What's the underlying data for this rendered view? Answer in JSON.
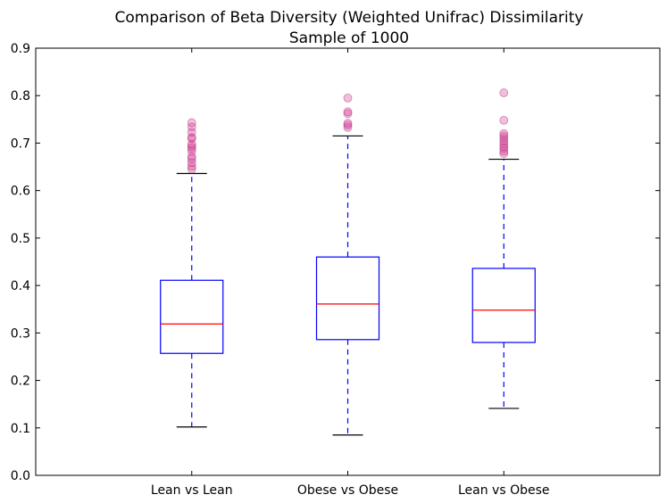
{
  "chart_data": {
    "type": "box",
    "title": "Comparison of Beta Diversity (Weighted Unifrac) Dissimilarity",
    "subtitle": "Sample of 1000",
    "xlabel": "",
    "ylabel": "",
    "ylim": [
      0,
      0.9
    ],
    "yticks": [
      0.0,
      0.1,
      0.2,
      0.3,
      0.4,
      0.5,
      0.6,
      0.7,
      0.8,
      0.9
    ],
    "ytick_labels": [
      "0.0",
      "0.1",
      "0.2",
      "0.3",
      "0.4",
      "0.5",
      "0.6",
      "0.7",
      "0.8",
      "0.9"
    ],
    "grid": false,
    "categories": [
      "Lean vs Lean",
      "Obese vs Obese",
      "Lean vs Obese"
    ],
    "boxes": [
      {
        "whisker_low": 0.102,
        "q1": 0.257,
        "median": 0.319,
        "q3": 0.411,
        "whisker_high": 0.636,
        "outliers": [
          0.645,
          0.651,
          0.659,
          0.667,
          0.672,
          0.683,
          0.689,
          0.693,
          0.698,
          0.71,
          0.712,
          0.723,
          0.734,
          0.743
        ]
      },
      {
        "whisker_low": 0.085,
        "q1": 0.286,
        "median": 0.361,
        "q3": 0.46,
        "whisker_high": 0.715,
        "outliers": [
          0.733,
          0.738,
          0.742,
          0.762,
          0.766,
          0.795
        ]
      },
      {
        "whisker_low": 0.141,
        "q1": 0.28,
        "median": 0.348,
        "q3": 0.436,
        "whisker_high": 0.666,
        "outliers": [
          0.678,
          0.683,
          0.689,
          0.693,
          0.699,
          0.704,
          0.71,
          0.715,
          0.72,
          0.748,
          0.806
        ]
      }
    ],
    "colors": {
      "box": "#0000ff",
      "median": "#ff0000",
      "whisker": "#0000ff",
      "cap": "#000000",
      "outlier_fill": "#e040a0",
      "axis": "#000000"
    }
  }
}
